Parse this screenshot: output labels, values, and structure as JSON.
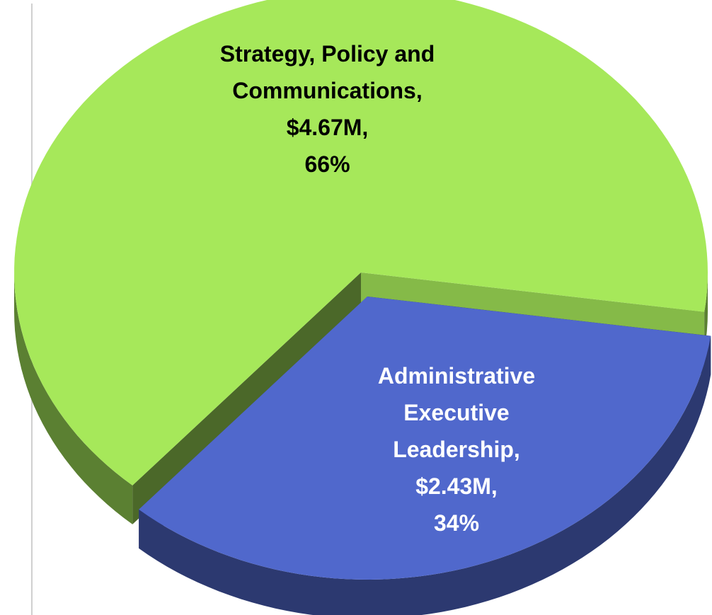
{
  "chart_data": {
    "type": "pie",
    "categories": [
      "Strategy, Policy and Communications",
      "Administrative Executive Leadership"
    ],
    "values": [
      4670000,
      2430000
    ],
    "value_labels": [
      "$4.67M",
      "$2.43M"
    ],
    "percents": [
      66,
      34
    ],
    "percent_labels": [
      "66%",
      "34%"
    ],
    "label_separator": ",",
    "colors": [
      "#a6e85a",
      "#5068cc"
    ]
  }
}
